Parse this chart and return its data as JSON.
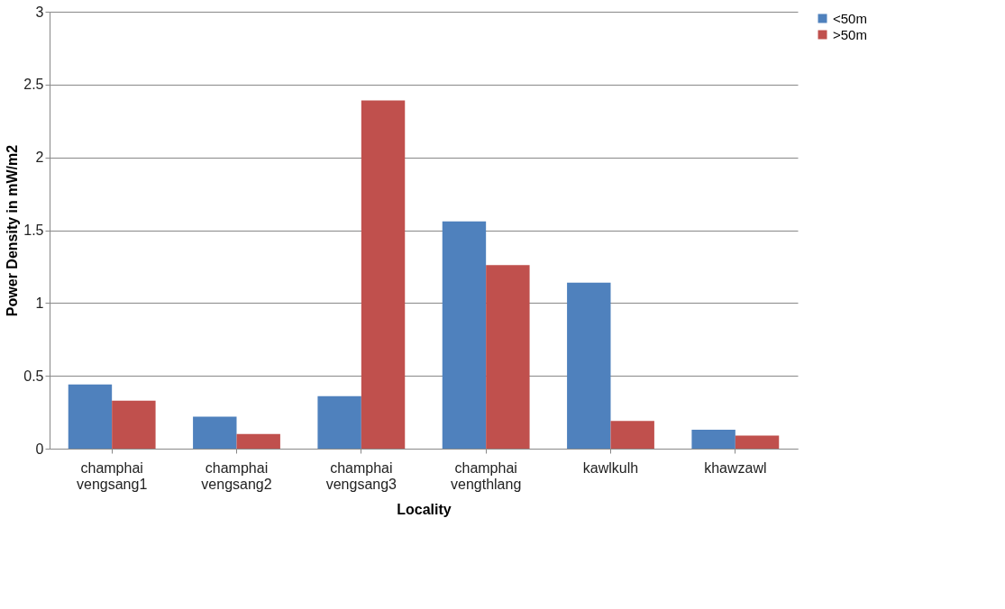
{
  "chart_data": {
    "type": "bar",
    "xlabel": "Locality",
    "ylabel": "Power Density in mW/m2",
    "categories": [
      "champhai vengsang1",
      "champhai vengsang2",
      "champhai vengsang3",
      "champhai vengthlang",
      "kawlkulh",
      "khawzawl"
    ],
    "series": [
      {
        "name": "<50m",
        "color": "#4f81bd",
        "values": [
          0.44,
          0.22,
          0.36,
          1.56,
          1.14,
          0.13
        ]
      },
      {
        "name": ">50m",
        "color": "#c0504d",
        "values": [
          0.33,
          0.1,
          2.39,
          1.26,
          0.19,
          0.09
        ]
      }
    ],
    "ylim": [
      0,
      3
    ],
    "yticks": [
      0,
      0.5,
      1,
      1.5,
      2,
      2.5,
      3
    ],
    "grid": "y",
    "legend": "right"
  }
}
